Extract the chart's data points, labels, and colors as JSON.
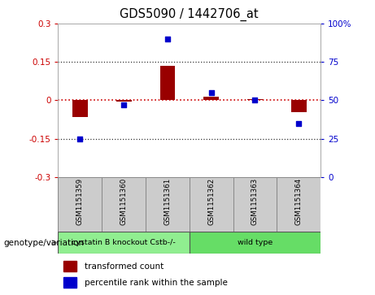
{
  "title": "GDS5090 / 1442706_at",
  "samples": [
    "GSM1151359",
    "GSM1151360",
    "GSM1151361",
    "GSM1151362",
    "GSM1151363",
    "GSM1151364"
  ],
  "red_values": [
    -0.065,
    -0.005,
    0.135,
    0.015,
    0.003,
    -0.045
  ],
  "blue_values_pct": [
    25,
    47,
    90,
    55,
    50,
    35
  ],
  "groups": [
    {
      "label": "cystatin B knockout Cstb-/-",
      "color": "#90ee90",
      "indices": [
        0,
        1,
        2
      ]
    },
    {
      "label": "wild type",
      "color": "#66dd66",
      "indices": [
        3,
        4,
        5
      ]
    }
  ],
  "ylim_left": [
    -0.3,
    0.3
  ],
  "ylim_right": [
    0,
    100
  ],
  "yticks_left": [
    -0.3,
    -0.15,
    0,
    0.15,
    0.3
  ],
  "yticks_right": [
    0,
    25,
    50,
    75,
    100
  ],
  "ytick_labels_left": [
    "-0.3",
    "-0.15",
    "0",
    "0.15",
    "0.3"
  ],
  "ytick_labels_right": [
    "0",
    "25",
    "50",
    "75",
    "100%"
  ],
  "hline_zero_color": "#cc0000",
  "hline_dotted_color": "#333333",
  "bar_color": "#990000",
  "dot_color": "#0000cc",
  "left_label_color": "#cc0000",
  "right_label_color": "#0000cc",
  "legend_red_label": "transformed count",
  "legend_blue_label": "percentile rank within the sample",
  "genotype_label": "genotype/variation",
  "bg_plot": "#ffffff",
  "bg_sample_boxes": "#cccccc",
  "bar_width": 0.35
}
